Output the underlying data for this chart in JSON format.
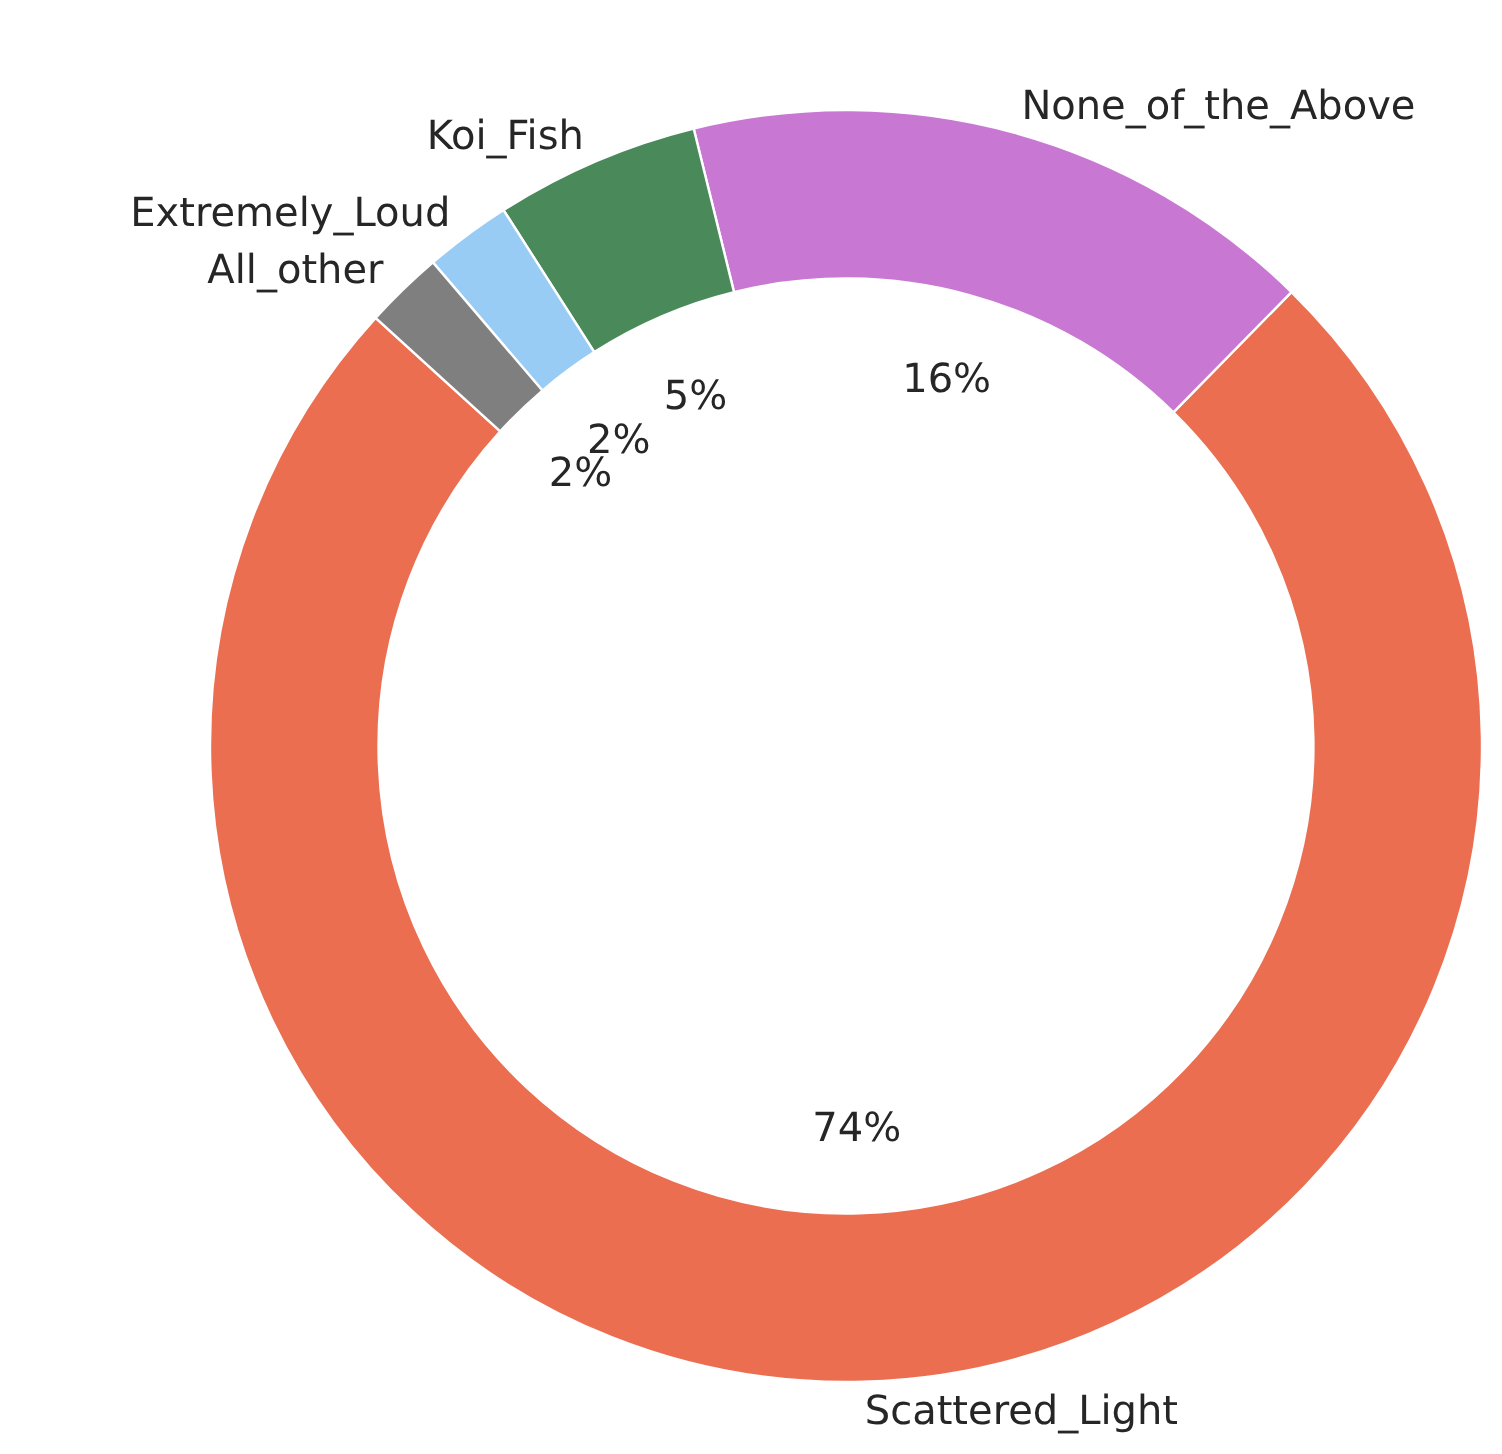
{
  "chart_data": {
    "type": "donut",
    "categories": [
      "Scattered_Light",
      "None_of_the_Above",
      "Koi_Fish",
      "Extremely_Loud",
      "All_other"
    ],
    "values": [
      74.4,
      16.2,
      5.2,
      2.2,
      2.0
    ],
    "value_labels": [
      "74%",
      "16%",
      "5%",
      "2%",
      "2%"
    ],
    "colors": [
      "#eb6e51",
      "#c878d2",
      "#4a8a5a",
      "#99ccf5",
      "#7f7f7f"
    ]
  }
}
